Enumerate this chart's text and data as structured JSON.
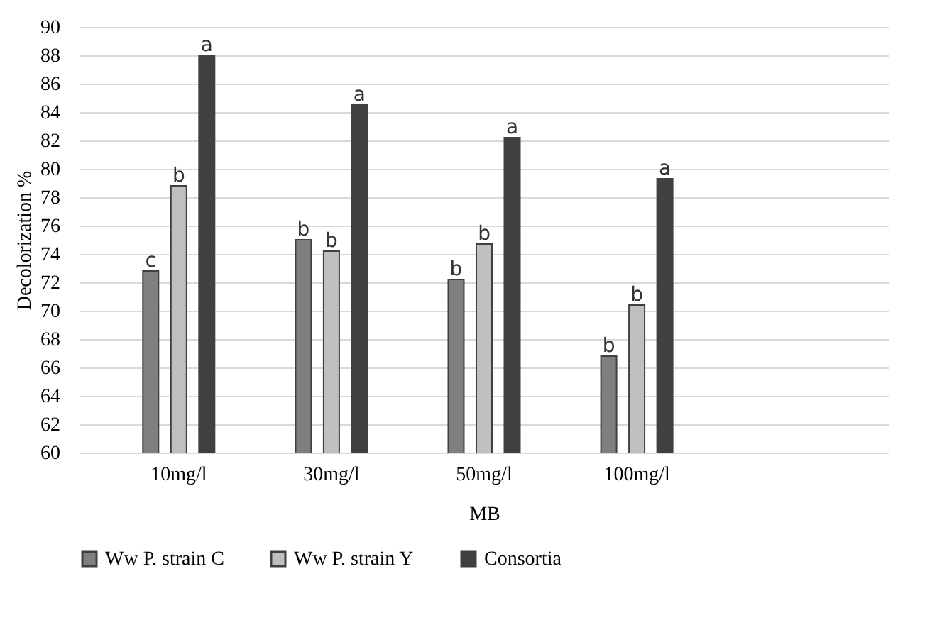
{
  "chart_data": {
    "type": "bar",
    "ylabel": "Decolorization %",
    "xlabel": "MB",
    "categories": [
      "10mg/l",
      "30mg/l",
      "50mg/l",
      "100mg/l",
      null
    ],
    "series": [
      {
        "name": "Ww P. strain C",
        "color": "#7f7f7f",
        "values": [
          72.8,
          75.0,
          72.2,
          66.8,
          null
        ],
        "value_labels": [
          "c",
          "b",
          "b",
          "b",
          null
        ]
      },
      {
        "name": "Ww P. strain Y",
        "color": "#bfbfbf",
        "values": [
          78.8,
          74.2,
          74.7,
          70.4,
          null
        ],
        "value_labels": [
          "b",
          "b",
          "b",
          "b",
          null
        ]
      },
      {
        "name": "Consortia",
        "color": "#404040",
        "values": [
          88.0,
          84.5,
          82.2,
          79.3,
          null
        ],
        "value_labels": [
          "a",
          "a",
          "a",
          "a",
          null
        ]
      }
    ],
    "ylim": [
      60,
      90
    ],
    "yticks": [
      60,
      62,
      64,
      66,
      68,
      70,
      72,
      74,
      76,
      78,
      80,
      82,
      84,
      86,
      88,
      90
    ],
    "grid": "y",
    "legend": "bottom"
  }
}
